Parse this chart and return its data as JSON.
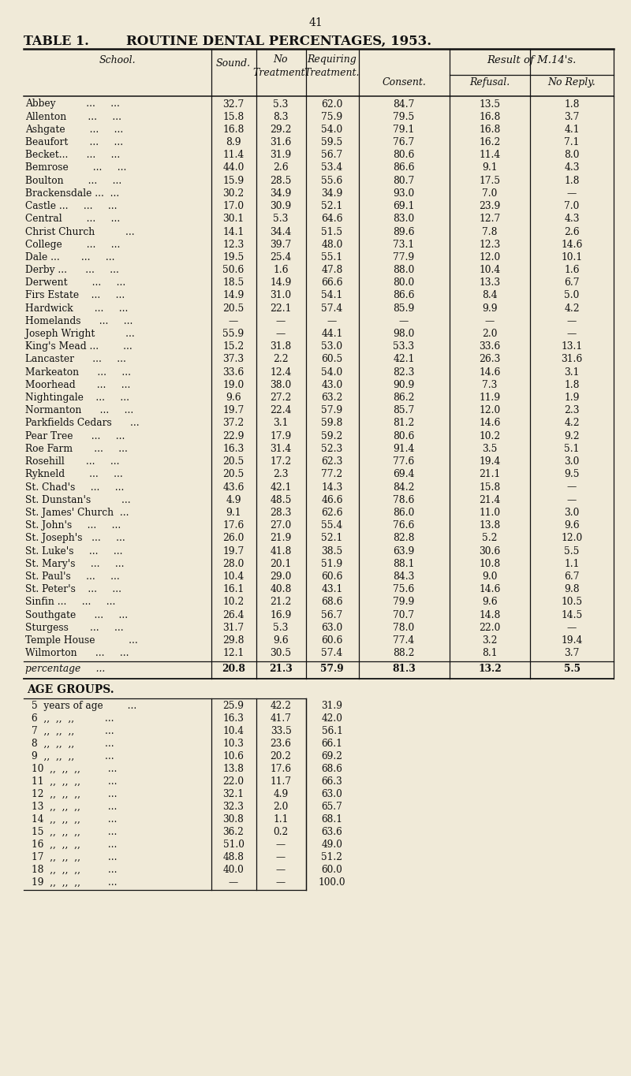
{
  "page_number": "41",
  "title_left": "TABLE 1.",
  "title_right": "ROUTINE DENTAL PERCENTAGES, 1953.",
  "col_headers": [
    "School.",
    "Sound.",
    "No\nTreatment.",
    "Requiring\nTreatment.",
    "Consent.",
    "Refusal.",
    "No Reply."
  ],
  "result_header": "Result of M.14's.",
  "school_rows": [
    [
      "Abbey          ...     ...",
      "32.7",
      "5.3",
      "62.0",
      "84.7",
      "13.5",
      "1.8"
    ],
    [
      "Allenton       ...     ...",
      "15.8",
      "8.3",
      "75.9",
      "79.5",
      "16.8",
      "3.7"
    ],
    [
      "Ashgate        ...     ...",
      "16.8",
      "29.2",
      "54.0",
      "79.1",
      "16.8",
      "4.1"
    ],
    [
      "Beaufort       ...     ...",
      "8.9",
      "31.6",
      "59.5",
      "76.7",
      "16.2",
      "7.1"
    ],
    [
      "Becket...      ...     ...",
      "11.4",
      "31.9",
      "56.7",
      "80.6",
      "11.4",
      "8.0"
    ],
    [
      "Bemrose        ...     ...",
      "44.0",
      "2.6",
      "53.4",
      "86.6",
      "9.1",
      "4.3"
    ],
    [
      "Boulton        ...     ...",
      "15.9",
      "28.5",
      "55.6",
      "80.7",
      "17.5",
      "1.8"
    ],
    [
      "Brackensdale ...  ...",
      "30.2",
      "34.9",
      "34.9",
      "93.0",
      "7.0",
      "—"
    ],
    [
      "Castle ...     ...     ...",
      "17.0",
      "30.9",
      "52.1",
      "69.1",
      "23.9",
      "7.0"
    ],
    [
      "Central        ...     ...",
      "30.1",
      "5.3",
      "64.6",
      "83.0",
      "12.7",
      "4.3"
    ],
    [
      "Christ Church          ...",
      "14.1",
      "34.4",
      "51.5",
      "89.6",
      "7.8",
      "2.6"
    ],
    [
      "College        ...     ...",
      "12.3",
      "39.7",
      "48.0",
      "73.1",
      "12.3",
      "14.6"
    ],
    [
      "Dale ...       ...     ...",
      "19.5",
      "25.4",
      "55.1",
      "77.9",
      "12.0",
      "10.1"
    ],
    [
      "Derby ...      ...     ...",
      "50.6",
      "1.6",
      "47.8",
      "88.0",
      "10.4",
      "1.6"
    ],
    [
      "Derwent        ...     ...",
      "18.5",
      "14.9",
      "66.6",
      "80.0",
      "13.3",
      "6.7"
    ],
    [
      "Firs Estate    ...     ...",
      "14.9",
      "31.0",
      "54.1",
      "86.6",
      "8.4",
      "5.0"
    ],
    [
      "Hardwick       ...     ...",
      "20.5",
      "22.1",
      "57.4",
      "85.9",
      "9.9",
      "4.2"
    ],
    [
      "Homelands      ...     ...",
      "—",
      "—",
      "—",
      "—",
      "—",
      "—"
    ],
    [
      "Joseph Wright          ...",
      "55.9",
      "—",
      "44.1",
      "98.0",
      "2.0",
      "—"
    ],
    [
      "King's Mead ...        ...",
      "15.2",
      "31.8",
      "53.0",
      "53.3",
      "33.6",
      "13.1"
    ],
    [
      "Lancaster      ...     ...",
      "37.3",
      "2.2",
      "60.5",
      "42.1",
      "26.3",
      "31.6"
    ],
    [
      "Markeaton      ...     ...",
      "33.6",
      "12.4",
      "54.0",
      "82.3",
      "14.6",
      "3.1"
    ],
    [
      "Moorhead       ...     ...",
      "19.0",
      "38.0",
      "43.0",
      "90.9",
      "7.3",
      "1.8"
    ],
    [
      "Nightingale    ...     ...",
      "9.6",
      "27.2",
      "63.2",
      "86.2",
      "11.9",
      "1.9"
    ],
    [
      "Normanton      ...     ...",
      "19.7",
      "22.4",
      "57.9",
      "85.7",
      "12.0",
      "2.3"
    ],
    [
      "Parkfields Cedars      ...",
      "37.2",
      "3.1",
      "59.8",
      "81.2",
      "14.6",
      "4.2"
    ],
    [
      "Pear Tree      ...     ...",
      "22.9",
      "17.9",
      "59.2",
      "80.6",
      "10.2",
      "9.2"
    ],
    [
      "Roe Farm       ...     ...",
      "16.3",
      "31.4",
      "52.3",
      "91.4",
      "3.5",
      "5.1"
    ],
    [
      "Rosehill       ...     ...",
      "20.5",
      "17.2",
      "62.3",
      "77.6",
      "19.4",
      "3.0"
    ],
    [
      "Rykneld        ...     ...",
      "20.5",
      "2.3",
      "77.2",
      "69.4",
      "21.1",
      "9.5"
    ],
    [
      "St. Chad's     ...     ...",
      "43.6",
      "42.1",
      "14.3",
      "84.2",
      "15.8",
      "—"
    ],
    [
      "St. Dunstan's          ...",
      "4.9",
      "48.5",
      "46.6",
      "78.6",
      "21.4",
      "—"
    ],
    [
      "St. James' Church  ...",
      "9.1",
      "28.3",
      "62.6",
      "86.0",
      "11.0",
      "3.0"
    ],
    [
      "St. John's     ...     ...",
      "17.6",
      "27.0",
      "55.4",
      "76.6",
      "13.8",
      "9.6"
    ],
    [
      "St. Joseph's   ...     ...",
      "26.0",
      "21.9",
      "52.1",
      "82.8",
      "5.2",
      "12.0"
    ],
    [
      "St. Luke's     ...     ...",
      "19.7",
      "41.8",
      "38.5",
      "63.9",
      "30.6",
      "5.5"
    ],
    [
      "St. Mary's     ...     ...",
      "28.0",
      "20.1",
      "51.9",
      "88.1",
      "10.8",
      "1.1"
    ],
    [
      "St. Paul's     ...     ...",
      "10.4",
      "29.0",
      "60.6",
      "84.3",
      "9.0",
      "6.7"
    ],
    [
      "St. Peter's    ...     ...",
      "16.1",
      "40.8",
      "43.1",
      "75.6",
      "14.6",
      "9.8"
    ],
    [
      "Sinfin ...     ...     ...",
      "10.2",
      "21.2",
      "68.6",
      "79.9",
      "9.6",
      "10.5"
    ],
    [
      "Southgate      ...     ...",
      "26.4",
      "16.9",
      "56.7",
      "70.7",
      "14.8",
      "14.5"
    ],
    [
      "Sturgess       ...     ...",
      "31.7",
      "5.3",
      "63.0",
      "78.0",
      "22.0",
      "—"
    ],
    [
      "Temple House           ...",
      "29.8",
      "9.6",
      "60.6",
      "77.4",
      "3.2",
      "19.4"
    ],
    [
      "Wilmorton      ...     ...",
      "12.1",
      "30.5",
      "57.4",
      "88.2",
      "8.1",
      "3.7"
    ]
  ],
  "percentage_row": [
    "percentage     ...",
    "20.8",
    "21.3",
    "57.9",
    "81.3",
    "13.2",
    "5.5"
  ],
  "age_groups_header": "AGE GROUPS.",
  "age_rows": [
    [
      "5  years of age        ...",
      "25.9",
      "42.2",
      "31.9"
    ],
    [
      "6  ,,  ,,  ,,          ...",
      "16.3",
      "41.7",
      "42.0"
    ],
    [
      "7  ,,  ,,  ,,          ...",
      "10.4",
      "33.5",
      "56.1"
    ],
    [
      "8  ,,  ,,  ,,          ...",
      "10.3",
      "23.6",
      "66.1"
    ],
    [
      "9  ,,  ,,  ,,          ...",
      "10.6",
      "20.2",
      "69.2"
    ],
    [
      "10  ,,  ,,  ,,         ...",
      "13.8",
      "17.6",
      "68.6"
    ],
    [
      "11  ,,  ,,  ,,         ...",
      "22.0",
      "11.7",
      "66.3"
    ],
    [
      "12  ,,  ,,  ,,         ...",
      "32.1",
      "4.9",
      "63.0"
    ],
    [
      "13  ,,  ,,  ,,         ...",
      "32.3",
      "2.0",
      "65.7"
    ],
    [
      "14  ,,  ,,  ,,         ...",
      "30.8",
      "1.1",
      "68.1"
    ],
    [
      "15  ,,  ,,  ,,         ...",
      "36.2",
      "0.2",
      "63.6"
    ],
    [
      "16  ,,  ,,  ,,         ...",
      "51.0",
      "—",
      "49.0"
    ],
    [
      "17  ,,  ,,  ,,         ...",
      "48.8",
      "—",
      "51.2"
    ],
    [
      "18  ,,  ,,  ,,         ...",
      "40.0",
      "—",
      "60.0"
    ],
    [
      "19  ,,  ,,  ,,         ...",
      "—",
      "—",
      "100.0"
    ]
  ],
  "bg_color": "#f0ead8",
  "text_color": "#111111"
}
